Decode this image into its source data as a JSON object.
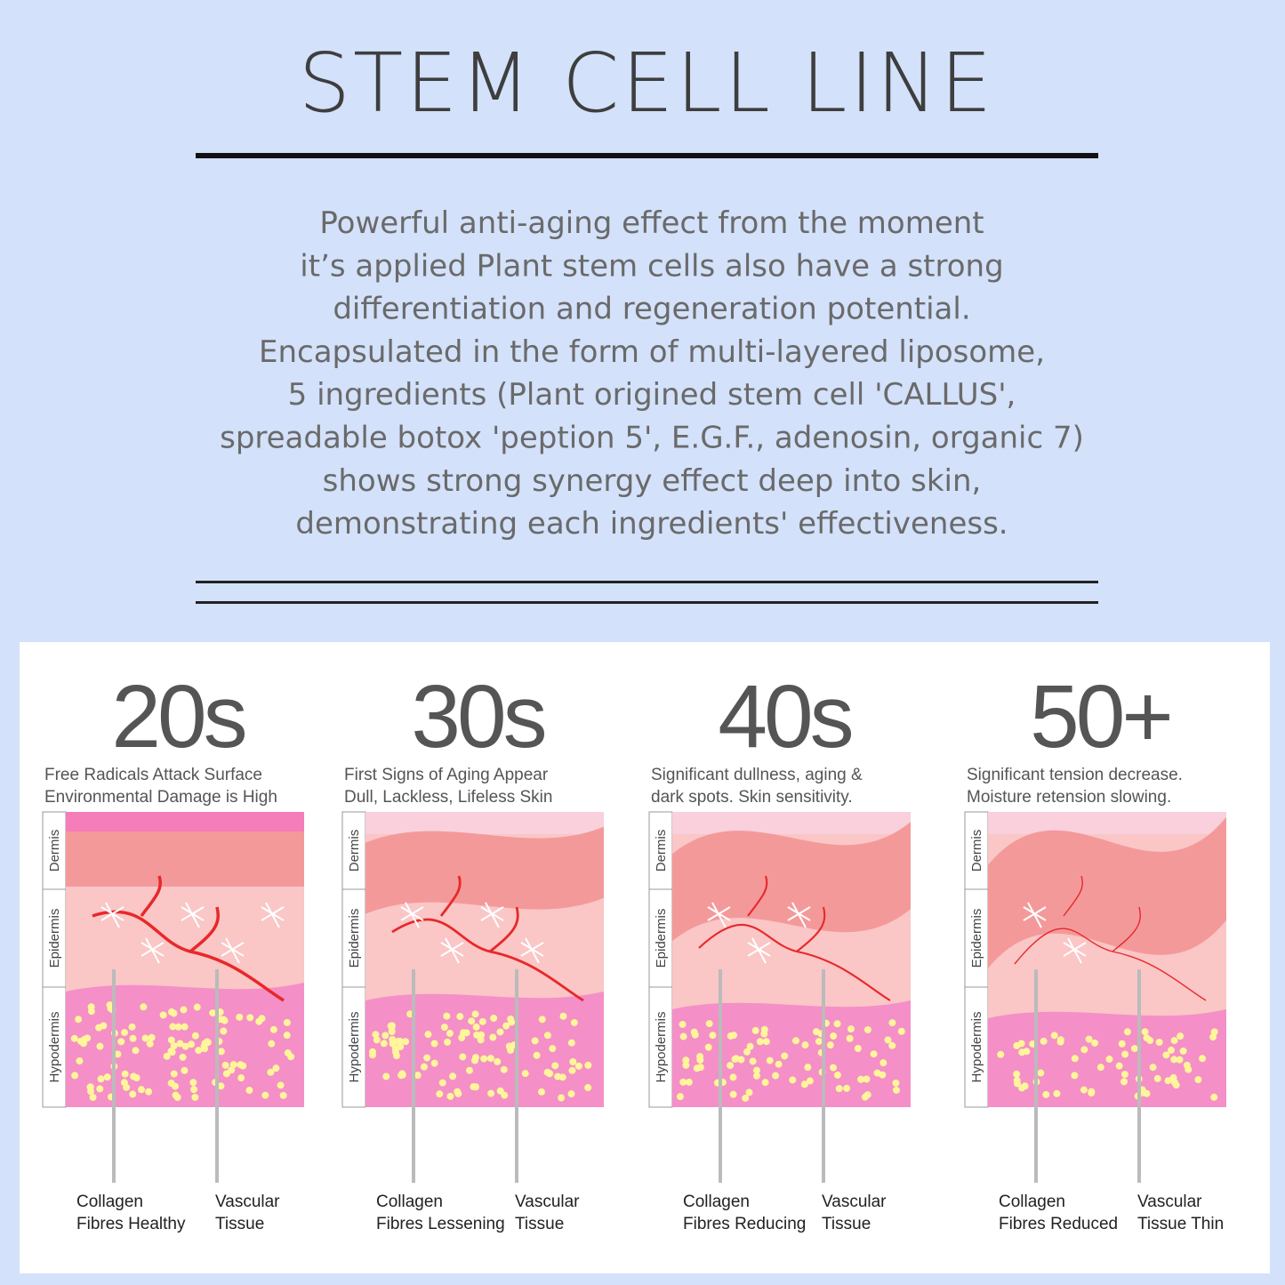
{
  "title": "STEM CELL LINE",
  "description": [
    "Powerful anti-aging effect from the moment",
    "it’s applied Plant stem cells also have a strong",
    "differentiation  and regeneration potential.",
    "Encapsulated in the form of multi-layered liposome,",
    "5 ingredients (Plant origined stem cell 'CALLUS',",
    "spreadable botox 'peption 5', E.G.F., adenosin, organic 7)",
    "shows strong synergy effect deep into skin,",
    "demonstrating each ingredients' effectiveness."
  ],
  "layers": [
    "Dermis",
    "Epidermis",
    "Hypodermis"
  ],
  "panels": [
    {
      "age": "20s",
      "caption": [
        "Free Radicals Attack Surface",
        "Environmental Damage is High"
      ],
      "labels": [
        [
          "Collagen",
          "Fibres Healthy"
        ],
        [
          "Vascular",
          "Tissue"
        ]
      ]
    },
    {
      "age": "30s",
      "caption": [
        "First Signs of Aging Appear",
        "Dull, Lackless, Lifeless Skin"
      ],
      "labels": [
        [
          "Collagen",
          "Fibres Lessening"
        ],
        [
          "Vascular",
          "Tissue"
        ]
      ]
    },
    {
      "age": "40s",
      "caption": [
        "Significant dullness, aging &",
        "dark spots. Skin sensitivity."
      ],
      "labels": [
        [
          "Collagen",
          "Fibres Reducing"
        ],
        [
          "Vascular",
          "Tissue"
        ]
      ]
    },
    {
      "age": "50+",
      "caption": [
        "Significant tension decrease.",
        "Moisture retension slowing."
      ],
      "labels": [
        [
          "Collagen",
          "Fibres Reduced"
        ],
        [
          "Vascular",
          "Tissue Thin"
        ]
      ]
    }
  ]
}
